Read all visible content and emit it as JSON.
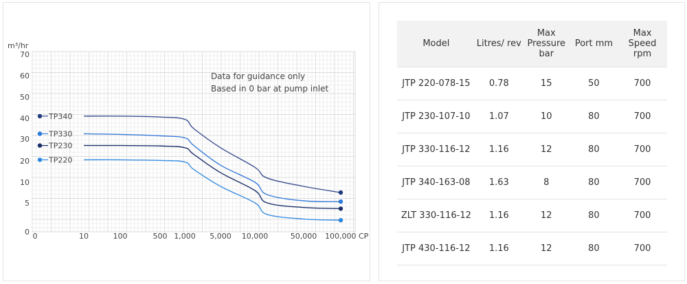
{
  "chart_data": {
    "type": "line",
    "ylabel": "m³/hr",
    "xlabel": "",
    "x_unit": "CP",
    "y_ticks": [
      0,
      5,
      10,
      20,
      30,
      40,
      50,
      60,
      70
    ],
    "x_ticks": [
      "0",
      "10",
      "100",
      "500",
      "1,000",
      "5,000",
      "10,000",
      "50,000",
      "100,000 CP"
    ],
    "x_tick_values": [
      0,
      10,
      100,
      500,
      1000,
      5000,
      10000,
      50000,
      100000
    ],
    "ylim": [
      0,
      70
    ],
    "grid": true,
    "annotations": [
      "Data for guidance only",
      "Based in 0 bar at pump inlet"
    ],
    "series": [
      {
        "name": "TP340",
        "color": "#3a4d8f",
        "marker": "#1f3a7a",
        "x": [
          0,
          10,
          100,
          500,
          1000,
          2000,
          5000,
          10000,
          20000,
          50000,
          100000
        ],
        "values": [
          41,
          41,
          41,
          40.6,
          39.5,
          35,
          26,
          17,
          12,
          9,
          7.5
        ]
      },
      {
        "name": "TP330",
        "color": "#3b7dd8",
        "marker": "#2a7ad9",
        "x": [
          0,
          10,
          100,
          500,
          1000,
          2000,
          5000,
          10000,
          20000,
          50000,
          100000
        ],
        "values": [
          32.5,
          32.5,
          32.2,
          31.5,
          30.5,
          27,
          18,
          10,
          7,
          5.5,
          5.3
        ]
      },
      {
        "name": "TP230",
        "color": "#1c2f6a",
        "marker": "#1c2f6a",
        "x": [
          0,
          10,
          100,
          500,
          1000,
          2000,
          5000,
          10000,
          20000,
          50000,
          100000
        ],
        "values": [
          27,
          27,
          27,
          26.8,
          26,
          23,
          14.5,
          8,
          5,
          4.2,
          4
        ]
      },
      {
        "name": "TP220",
        "color": "#3a8ee0",
        "marker": "#2e86de",
        "x": [
          0,
          10,
          100,
          500,
          1000,
          2000,
          5000,
          10000,
          20000,
          50000,
          100000
        ],
        "values": [
          20.5,
          20.5,
          20.5,
          20.2,
          19.5,
          16,
          9,
          5,
          3,
          2.2,
          2
        ]
      }
    ]
  },
  "table": {
    "headers": [
      "Model",
      "Litres/ rev",
      "Max Pressure bar",
      "Port mm",
      "Max Speed rpm"
    ],
    "rows": [
      [
        "JTP 220-078-15",
        "0.78",
        "15",
        "50",
        "700"
      ],
      [
        "JTP 230-107-10",
        "1.07",
        "10",
        "80",
        "700"
      ],
      [
        "JTP 330-116-12",
        "1.16",
        "12",
        "80",
        "700"
      ],
      [
        "JTP 340-163-08",
        "1.63",
        "8",
        "80",
        "700"
      ],
      [
        "ZLT 330-116-12",
        "1.16",
        "12",
        "80",
        "700"
      ],
      [
        "JTP 430-116-12",
        "1.16",
        "12",
        "80",
        "700"
      ]
    ]
  }
}
